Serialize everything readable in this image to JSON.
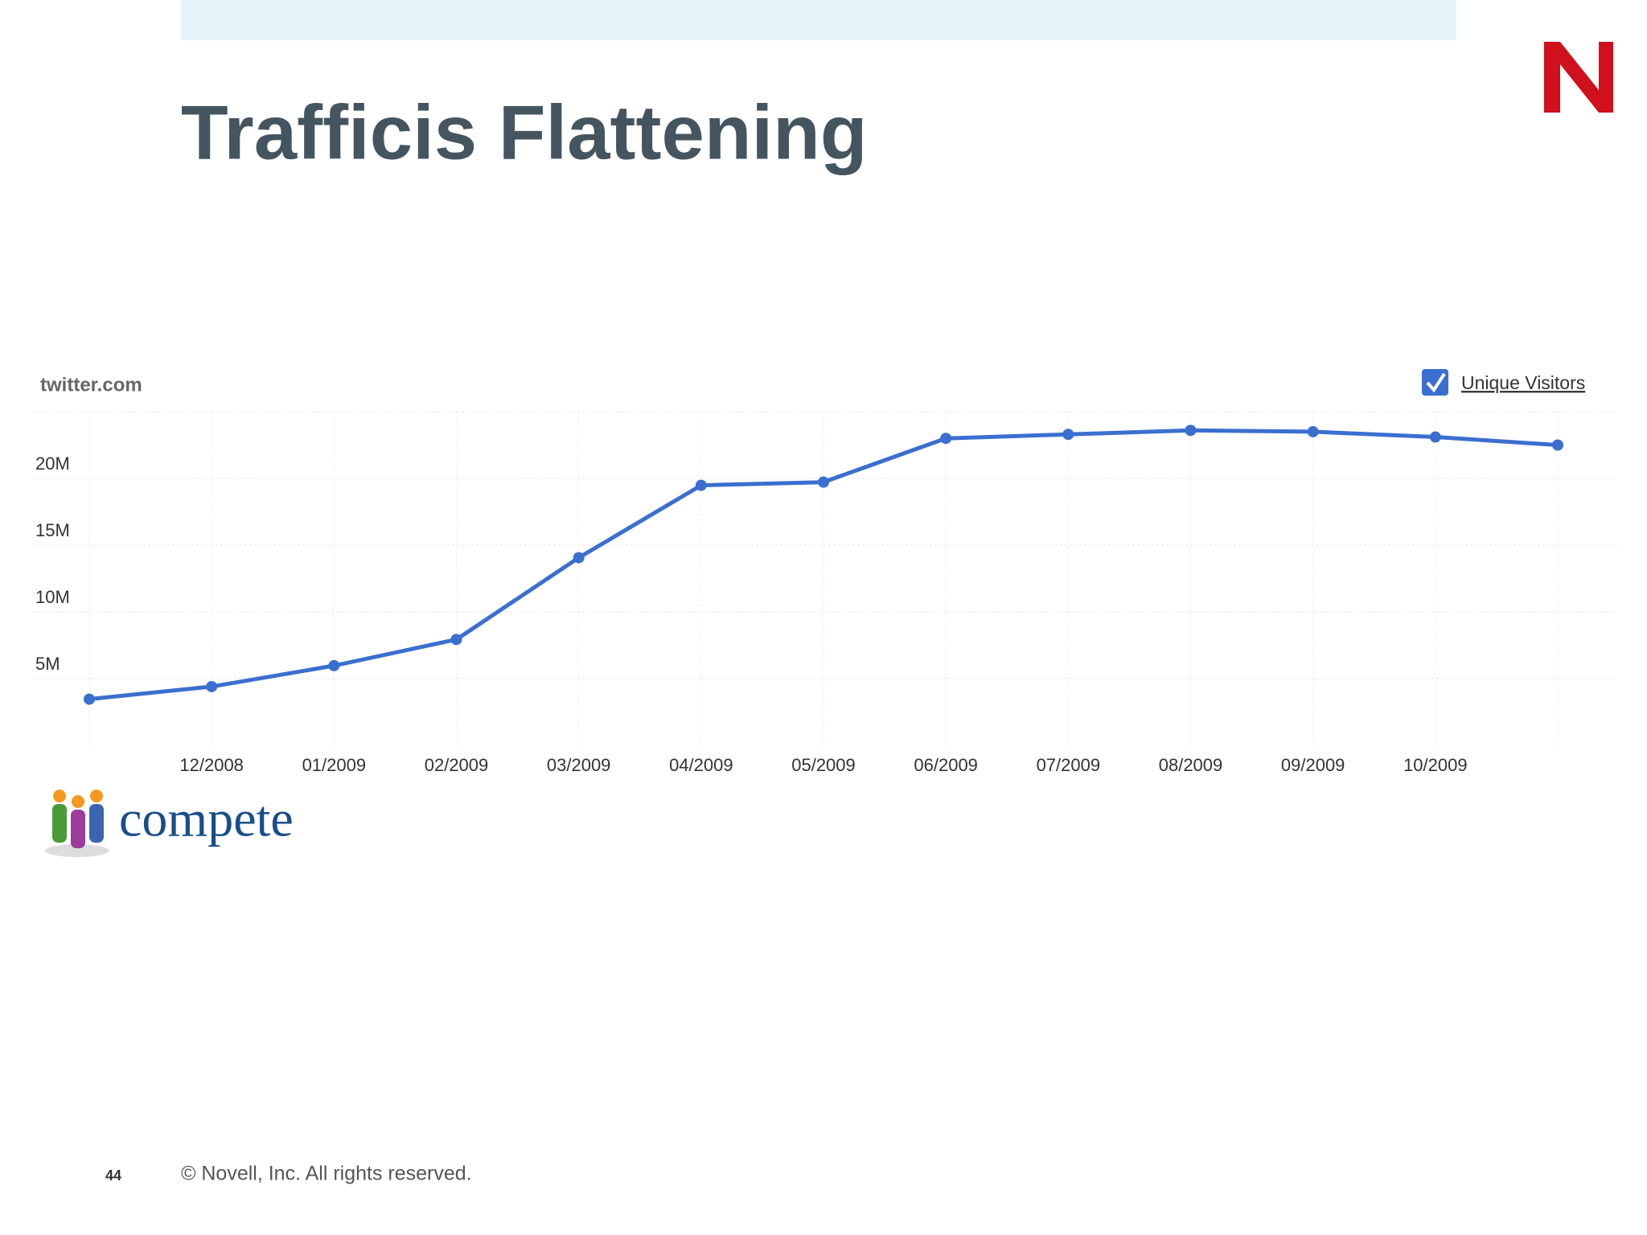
{
  "slide": {
    "title": "Trafficis Flattening",
    "logo_text": "compete",
    "page_number": "44",
    "copyright": "©  Novell, Inc.  All rights reserved."
  },
  "chart_data": {
    "type": "line",
    "title": "twitter.com",
    "categories": [
      null,
      "12/2008",
      "01/2009",
      "02/2009",
      "03/2009",
      "04/2009",
      "05/2009",
      "06/2009",
      "07/2009",
      "08/2009",
      "09/2009",
      "10/2009",
      null
    ],
    "series": [
      {
        "name": "Unique Visitors",
        "color": "#3a6fcf",
        "values": [
          3460000,
          4400000,
          5970000,
          7930000,
          14060000,
          19480000,
          19720000,
          23000000,
          23300000,
          23600000,
          23500000,
          23100000,
          22500000
        ]
      }
    ],
    "ylim": [
      0,
      25000000
    ],
    "yticks": [
      {
        "value": 5000000,
        "label": "5M"
      },
      {
        "value": 10000000,
        "label": "10M"
      },
      {
        "value": 15000000,
        "label": "15M"
      },
      {
        "value": 20000000,
        "label": "20M"
      }
    ],
    "grid": true
  }
}
